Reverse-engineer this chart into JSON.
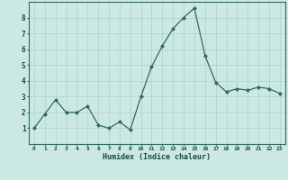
{
  "x": [
    0,
    1,
    2,
    3,
    4,
    5,
    6,
    7,
    8,
    9,
    10,
    11,
    12,
    13,
    14,
    15,
    16,
    17,
    18,
    19,
    20,
    21,
    22,
    23
  ],
  "y": [
    1.0,
    1.9,
    2.8,
    2.0,
    2.0,
    2.4,
    1.2,
    1.0,
    1.4,
    0.9,
    3.0,
    4.9,
    6.2,
    7.3,
    8.0,
    8.6,
    5.6,
    3.9,
    3.3,
    3.5,
    3.4,
    3.6,
    3.5,
    3.2
  ],
  "xlabel": "Humidex (Indice chaleur)",
  "bg_color": "#cce8e4",
  "line_color": "#2d6b5a",
  "marker_color": "#2d6b5a",
  "grid_color": "#a8d4cc",
  "tick_label_color": "#1a4a3a",
  "axis_label_color": "#1a4a3a",
  "xlim": [
    -0.5,
    23.5
  ],
  "ylim": [
    0,
    9
  ],
  "yticks": [
    1,
    2,
    3,
    4,
    5,
    6,
    7,
    8
  ],
  "xticks": [
    0,
    1,
    2,
    3,
    4,
    5,
    6,
    7,
    8,
    9,
    10,
    11,
    12,
    13,
    14,
    15,
    16,
    17,
    18,
    19,
    20,
    21,
    22,
    23
  ],
  "xtick_labels": [
    "0",
    "1",
    "2",
    "3",
    "4",
    "5",
    "6",
    "7",
    "8",
    "9",
    "10",
    "11",
    "12",
    "13",
    "14",
    "15",
    "16",
    "17",
    "18",
    "19",
    "20",
    "21",
    "22",
    "23"
  ]
}
